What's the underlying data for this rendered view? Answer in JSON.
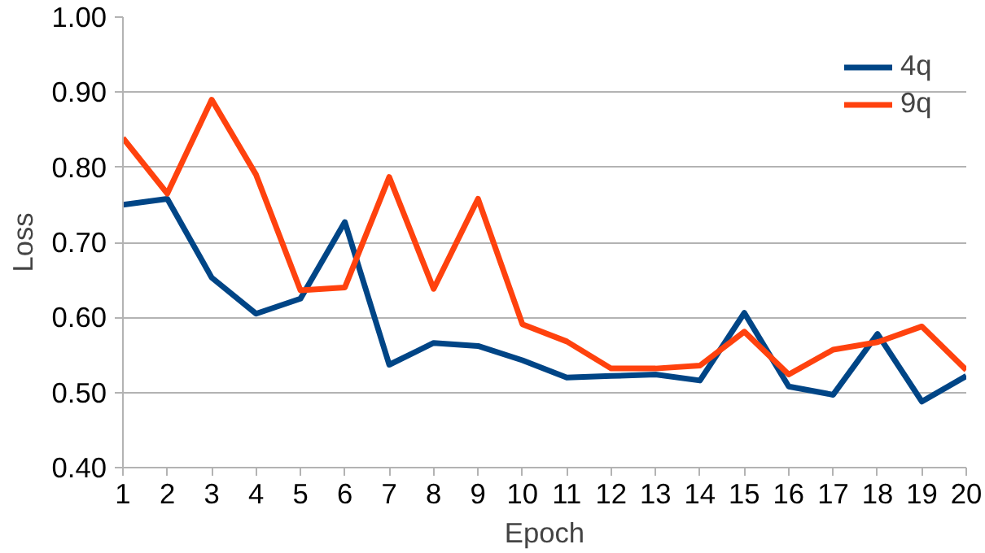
{
  "chart_data": {
    "type": "line",
    "xlabel": "Epoch",
    "ylabel": "Loss",
    "x": [
      1,
      2,
      3,
      4,
      5,
      6,
      7,
      8,
      9,
      10,
      11,
      12,
      13,
      14,
      15,
      16,
      17,
      18,
      19,
      20
    ],
    "series": [
      {
        "name": "4q",
        "color": "#004586",
        "values": [
          0.75,
          0.758,
          0.653,
          0.605,
          0.625,
          0.727,
          0.537,
          0.566,
          0.562,
          0.543,
          0.52,
          0.522,
          0.524,
          0.516,
          0.606,
          0.508,
          0.497,
          0.578,
          0.488,
          0.522
        ]
      },
      {
        "name": "9q",
        "color": "#ff420e",
        "values": [
          0.839,
          0.765,
          0.89,
          0.79,
          0.636,
          0.64,
          0.787,
          0.638,
          0.758,
          0.591,
          0.568,
          0.532,
          0.532,
          0.536,
          0.581,
          0.524,
          0.557,
          0.567,
          0.588,
          0.53
        ]
      }
    ],
    "xlim": [
      1,
      20
    ],
    "xticks": [
      1,
      2,
      3,
      4,
      5,
      6,
      7,
      8,
      9,
      10,
      11,
      12,
      13,
      14,
      15,
      16,
      17,
      18,
      19,
      20
    ],
    "ylim": [
      0.4,
      1.0
    ],
    "yticks": [
      {
        "value": 0.4,
        "label": "0.40"
      },
      {
        "value": 0.5,
        "label": "0.50"
      },
      {
        "value": 0.6,
        "label": "0.60"
      },
      {
        "value": 0.7,
        "label": "0.70"
      },
      {
        "value": 0.8,
        "label": "0.80"
      },
      {
        "value": 0.9,
        "label": "0.90"
      },
      {
        "value": 1.0,
        "label": "1.00"
      }
    ],
    "grid": "y",
    "legend": "top right",
    "marker": "none",
    "line_style": "solid"
  }
}
